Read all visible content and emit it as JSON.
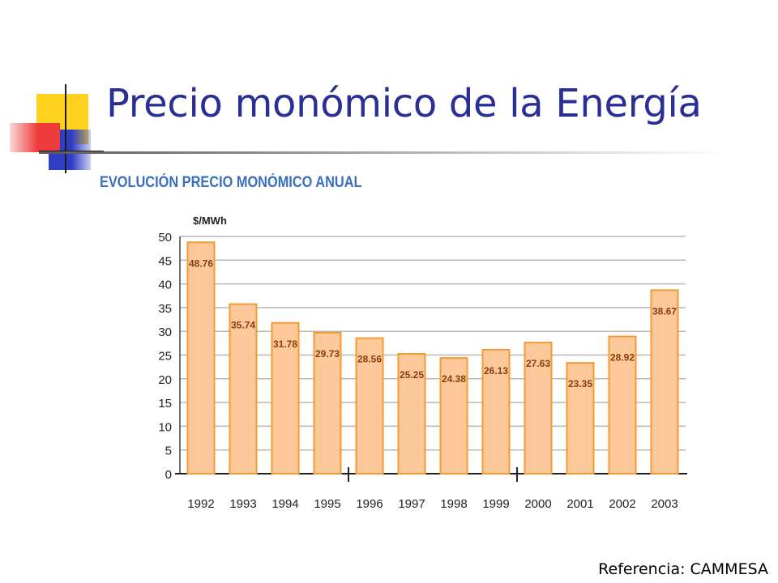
{
  "slide": {
    "title": "Precio monómico de la Energía",
    "reference": "Referencia: CAMMESA"
  },
  "colors": {
    "title": "#2b2f95",
    "chart_title": "#3a6fc0",
    "bar_fill": "#fdc99a",
    "bar_stroke": "#f29a33",
    "label": "#8a3d0c",
    "deco_yellow": "#ffd21f",
    "deco_blue": "#2f3ec4",
    "deco_red": "#ee3c3c"
  },
  "chart_data": {
    "type": "bar",
    "title": "EVOLUCIÓN PRECIO MONÓMICO ANUAL",
    "ylabel": "$/MWh",
    "xlabel": "",
    "ylim": [
      0,
      50
    ],
    "yticks": [
      0,
      5,
      10,
      15,
      20,
      25,
      30,
      35,
      40,
      45,
      50
    ],
    "grid": true,
    "categories": [
      "1992",
      "1993",
      "1994",
      "1995",
      "1996",
      "1997",
      "1998",
      "1999",
      "2000",
      "2001",
      "2002",
      "2003"
    ],
    "values": [
      48.76,
      35.74,
      31.78,
      29.73,
      28.56,
      25.25,
      24.38,
      26.13,
      27.63,
      23.35,
      28.92,
      38.67
    ],
    "value_labels": [
      "48.76",
      "35.74",
      "31.78",
      "29.73",
      "28.56",
      "25.25",
      "24.38",
      "26.13",
      "27.63",
      "23.35",
      "28.92",
      "38.67"
    ]
  }
}
